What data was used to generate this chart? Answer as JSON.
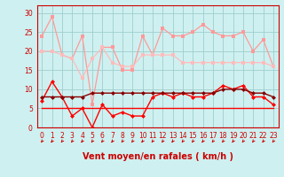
{
  "x": [
    0,
    1,
    2,
    3,
    4,
    5,
    6,
    7,
    8,
    9,
    10,
    11,
    12,
    13,
    14,
    15,
    16,
    17,
    18,
    19,
    20,
    21,
    22,
    23
  ],
  "line1_rafales": [
    24,
    29,
    19,
    18,
    24,
    6,
    21,
    21,
    15,
    15,
    24,
    19,
    26,
    24,
    24,
    25,
    27,
    25,
    24,
    24,
    25,
    20,
    23,
    16
  ],
  "line2_moy": [
    20,
    20,
    19,
    18,
    13,
    18,
    21,
    17,
    16,
    16,
    19,
    19,
    19,
    19,
    17,
    17,
    17,
    17,
    17,
    17,
    17,
    17,
    17,
    16
  ],
  "line3_var1": [
    7,
    12,
    8,
    3,
    5,
    0,
    6,
    3,
    4,
    3,
    3,
    8,
    9,
    8,
    9,
    8,
    8,
    9,
    11,
    10,
    11,
    8,
    8,
    6
  ],
  "line4_trend": [
    8,
    8,
    8,
    8,
    8,
    9,
    9,
    9,
    9,
    9,
    9,
    9,
    9,
    9,
    9,
    9,
    9,
    9,
    10,
    10,
    10,
    9,
    9,
    8
  ],
  "line5_flat": [
    5,
    5,
    5,
    5,
    5,
    5,
    5,
    5,
    5,
    5,
    5,
    5,
    5,
    5,
    5,
    5,
    5,
    5,
    5,
    5,
    5,
    5,
    5,
    5
  ],
  "bg_color": "#cff0f0",
  "grid_color": "#9ecece",
  "line1_color": "#ff9999",
  "line2_color": "#ffbbbb",
  "line3_color": "#ff0000",
  "line4_color": "#880000",
  "line5_color": "#ff0000",
  "axis_color": "#cc0000",
  "xlabel": "Vent moyen/en rafales ( km/h )",
  "ylim": [
    0,
    32
  ],
  "xlim": [
    -0.5,
    23.5
  ],
  "yticks": [
    0,
    5,
    10,
    15,
    20,
    25,
    30
  ],
  "xticks": [
    0,
    1,
    2,
    3,
    4,
    5,
    6,
    7,
    8,
    9,
    10,
    11,
    12,
    13,
    14,
    15,
    16,
    17,
    18,
    19,
    20,
    21,
    22,
    23
  ],
  "tick_fontsize": 5.5,
  "xlabel_fontsize": 7
}
